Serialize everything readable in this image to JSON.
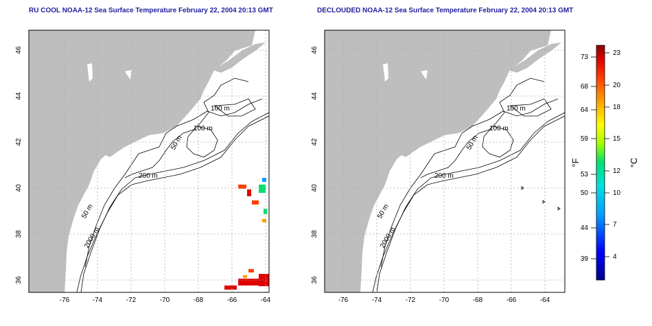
{
  "titles": {
    "left": "RU COOL NOAA-12 Sea Surface Temperature February 22, 2004 20:13 GMT",
    "right": "DECLOUDED NOAA-12 Sea Surface Temperature February 22, 2004 20:13 GMT"
  },
  "axes": {
    "lon_ticks": [
      "-76",
      "-74",
      "-72",
      "-70",
      "-68",
      "-66",
      "-64"
    ],
    "lat_ticks": [
      "36",
      "38",
      "40",
      "42",
      "44",
      "46"
    ]
  },
  "contour_labels": {
    "left": [
      "100 m",
      "100 m",
      "50 m",
      "200 m",
      "50 m",
      "2000 m"
    ],
    "right": [
      "100 m",
      "100 m",
      "50 m",
      "200 m",
      "50 m",
      "2000 m"
    ]
  },
  "colorbar": {
    "fahrenheit_ticks": [
      "73",
      "68",
      "64",
      "59",
      "53",
      "50",
      "44",
      "39"
    ],
    "celsius_ticks": [
      "23",
      "20",
      "18",
      "15",
      "12",
      "10",
      "7",
      "4"
    ],
    "fahrenheit_unit": "°F",
    "celsius_unit": "°C",
    "gradient_colors": [
      "#00008b",
      "#0000ff",
      "#00a0ff",
      "#00e0e0",
      "#00e070",
      "#a0ff00",
      "#ffff00",
      "#ffa000",
      "#ff4000",
      "#e00000",
      "#8b0000"
    ]
  },
  "colors": {
    "land": "#bebebe",
    "title": "#1f1fa0",
    "grid": "#aaaaaa"
  }
}
